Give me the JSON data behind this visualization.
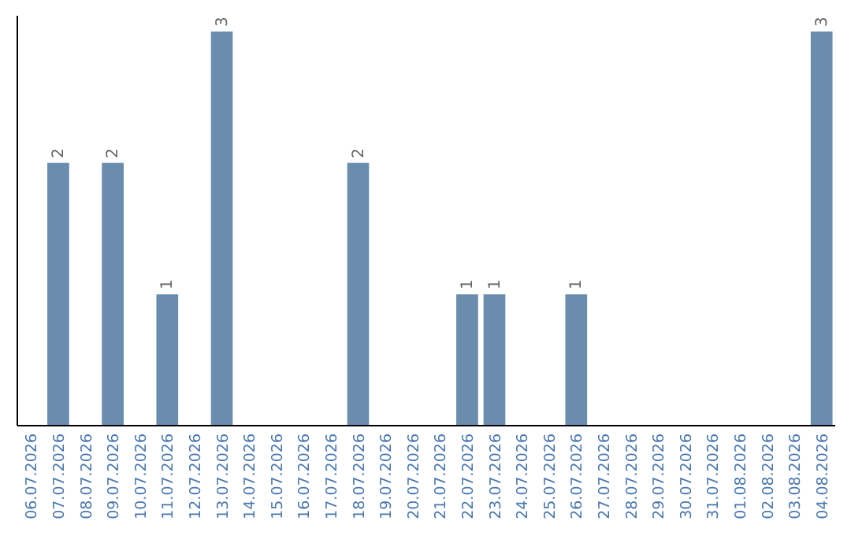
{
  "chart_data": {
    "type": "bar",
    "categories": [
      "06.07.2026",
      "07.07.2026",
      "08.07.2026",
      "09.07.2026",
      "10.07.2026",
      "11.07.2026",
      "12.07.2026",
      "13.07.2026",
      "14.07.2026",
      "15.07.2026",
      "16.07.2026",
      "17.07.2026",
      "18.07.2026",
      "19.07.2026",
      "20.07.2026",
      "21.07.2026",
      "22.07.2026",
      "23.07.2026",
      "24.07.2026",
      "25.07.2026",
      "26.07.2026",
      "27.07.2026",
      "28.07.2026",
      "29.07.2026",
      "30.07.2026",
      "31.07.2026",
      "01.08.2026",
      "02.08.2026",
      "03.08.2026",
      "04.08.2026"
    ],
    "values": [
      0,
      2,
      0,
      2,
      0,
      1,
      0,
      3,
      0,
      0,
      0,
      0,
      2,
      0,
      0,
      0,
      1,
      1,
      0,
      0,
      1,
      0,
      0,
      0,
      0,
      0,
      0,
      0,
      0,
      3
    ],
    "value_labels": [
      null,
      "2",
      null,
      "2",
      null,
      "1",
      null,
      "3",
      null,
      null,
      null,
      null,
      "2",
      null,
      null,
      null,
      "1",
      "1",
      null,
      null,
      "1",
      null,
      null,
      null,
      null,
      null,
      null,
      null,
      null,
      "3"
    ],
    "color": "#6a8cad",
    "ylim": [
      0,
      3.12
    ],
    "tick_labels": "x"
  }
}
